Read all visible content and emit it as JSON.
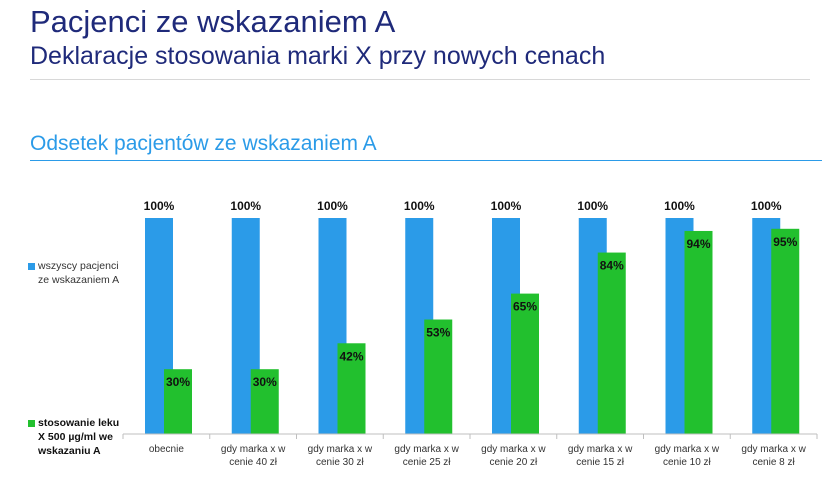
{
  "header": {
    "title": "Pacjenci ze wskazaniem A",
    "subtitle": "Deklaracje stosowania marki X przy nowych cenach",
    "section_title": "Odsetek pacjentów ze wskazaniem A"
  },
  "chart_data": {
    "type": "bar",
    "categories": [
      [
        "obecnie"
      ],
      [
        "gdy marka  x w",
        "cenie 40 zł"
      ],
      [
        "gdy marka  x w",
        "cenie 30 zł"
      ],
      [
        "gdy marka  x w",
        "cenie 25 zł"
      ],
      [
        "gdy marka  x w",
        "cenie 20 zł"
      ],
      [
        "gdy marka  x w",
        "cenie 15 zł"
      ],
      [
        "gdy marka  x w",
        "cenie 10 zł"
      ],
      [
        "gdy marka  x w",
        "cenie 8 zł"
      ]
    ],
    "series": [
      {
        "name": "wszyscy pacjenci ze wskazaniem  A",
        "color": "#2b9be8",
        "values": [
          100,
          100,
          100,
          100,
          100,
          100,
          100,
          100
        ],
        "labels": [
          "100%",
          "100%",
          "100%",
          "100%",
          "100%",
          "100%",
          "100%",
          "100%"
        ]
      },
      {
        "name": "stosowanie leku X 500 µg/ml we wskazaniu A",
        "color": "#22c02e",
        "values": [
          30,
          30,
          42,
          53,
          65,
          84,
          94,
          95
        ],
        "labels": [
          "30%",
          "30%",
          "42%",
          "53%",
          "65%",
          "84%",
          "94%",
          "95%"
        ]
      }
    ],
    "ylim": [
      0,
      100
    ],
    "grid": false,
    "legend": "left"
  }
}
